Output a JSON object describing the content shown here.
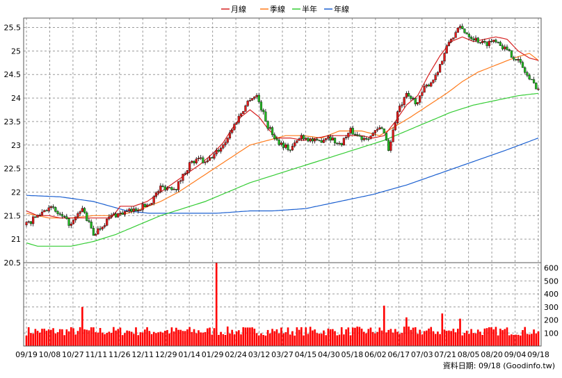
{
  "chart_data": {
    "type": "candlestick",
    "legend": {
      "placement": "top-center",
      "items": [
        {
          "label": "月線",
          "color": "#d62020"
        },
        {
          "label": "季線",
          "color": "#ff7a1a"
        },
        {
          "label": "半年",
          "color": "#33cc33"
        },
        {
          "label": "年線",
          "color": "#1a5fd0"
        }
      ]
    },
    "price_axis": {
      "ticks": [
        "20.5",
        "21",
        "21.5",
        "22",
        "22.5",
        "23",
        "23.5",
        "24",
        "24.5",
        "25",
        "25.5"
      ],
      "ylim": [
        20.5,
        25.7
      ]
    },
    "volume_axis": {
      "ticks": [
        "100",
        "200",
        "300",
        "400",
        "500",
        "600"
      ],
      "ylim": [
        0,
        640
      ]
    },
    "x_ticks": [
      "09/19",
      "10/08",
      "10/27",
      "11/11",
      "11/26",
      "12/11",
      "12/29",
      "01/14",
      "01/29",
      "02/24",
      "03/12",
      "03/27",
      "04/15",
      "04/30",
      "05/18",
      "06/02",
      "06/17",
      "07/03",
      "07/21",
      "08/05",
      "08/20",
      "09/04",
      "09/18"
    ],
    "grid": true,
    "source_note": "資料日期: 09/18 (Goodinfo.tw)",
    "colors": {
      "up": "#e31b1b",
      "down": "#22bb22",
      "volume": "#ff0000",
      "axis": "#555555"
    },
    "price_path": [
      [
        0,
        21.3
      ],
      [
        10,
        21.7
      ],
      [
        20,
        21.3
      ],
      [
        25,
        21.65
      ],
      [
        30,
        21.1
      ],
      [
        38,
        21.5
      ],
      [
        47,
        21.6
      ],
      [
        55,
        21.75
      ],
      [
        60,
        22.1
      ],
      [
        67,
        22.1
      ],
      [
        73,
        22.6
      ],
      [
        78,
        22.7
      ],
      [
        80,
        22.6
      ],
      [
        84,
        22.8
      ],
      [
        88,
        23.0
      ],
      [
        95,
        23.6
      ],
      [
        100,
        24.0
      ],
      [
        103,
        24.05
      ],
      [
        108,
        23.4
      ],
      [
        112,
        23.1
      ],
      [
        118,
        22.9
      ],
      [
        123,
        23.2
      ],
      [
        130,
        23.05
      ],
      [
        135,
        23.2
      ],
      [
        140,
        23.0
      ],
      [
        145,
        23.3
      ],
      [
        150,
        23.15
      ],
      [
        154,
        23.2
      ],
      [
        158,
        23.35
      ],
      [
        160,
        23.3
      ],
      [
        162,
        22.9
      ],
      [
        166,
        23.7
      ],
      [
        170,
        24.05
      ],
      [
        175,
        23.9
      ],
      [
        178,
        24.2
      ],
      [
        182,
        24.4
      ],
      [
        186,
        24.8
      ],
      [
        189,
        25.2
      ],
      [
        194,
        25.5
      ],
      [
        199,
        25.3
      ],
      [
        205,
        25.15
      ],
      [
        210,
        25.25
      ],
      [
        215,
        25.0
      ],
      [
        220,
        24.8
      ],
      [
        225,
        24.4
      ],
      [
        229,
        24.2
      ]
    ],
    "volume_spikes": [
      [
        25,
        300
      ],
      [
        85,
        640
      ],
      [
        160,
        310
      ],
      [
        170,
        220
      ],
      [
        186,
        250
      ],
      [
        194,
        210
      ]
    ],
    "ma_month": [
      [
        0,
        21.6
      ],
      [
        5,
        21.5
      ],
      [
        10,
        21.5
      ],
      [
        15,
        21.45
      ],
      [
        20,
        21.45
      ],
      [
        26,
        21.45
      ],
      [
        32,
        21.45
      ],
      [
        38,
        21.45
      ],
      [
        42,
        21.7
      ],
      [
        48,
        21.7
      ],
      [
        54,
        21.8
      ],
      [
        60,
        22.0
      ],
      [
        66,
        22.2
      ],
      [
        72,
        22.4
      ],
      [
        78,
        22.6
      ],
      [
        84,
        22.85
      ],
      [
        88,
        23.05
      ],
      [
        92,
        23.35
      ],
      [
        96,
        23.6
      ],
      [
        100,
        23.75
      ],
      [
        104,
        23.6
      ],
      [
        108,
        23.35
      ],
      [
        112,
        23.15
      ],
      [
        118,
        23.15
      ],
      [
        124,
        23.1
      ],
      [
        130,
        23.15
      ],
      [
        135,
        23.2
      ],
      [
        140,
        23.2
      ],
      [
        145,
        23.2
      ],
      [
        150,
        23.2
      ],
      [
        155,
        23.15
      ],
      [
        160,
        23.2
      ],
      [
        165,
        23.5
      ],
      [
        170,
        23.85
      ],
      [
        175,
        24.05
      ],
      [
        180,
        24.5
      ],
      [
        185,
        24.9
      ],
      [
        190,
        25.2
      ],
      [
        195,
        25.3
      ],
      [
        200,
        25.2
      ],
      [
        205,
        25.25
      ],
      [
        210,
        25.3
      ],
      [
        215,
        25.25
      ],
      [
        220,
        25.0
      ],
      [
        225,
        24.85
      ],
      [
        229,
        24.8
      ]
    ],
    "ma_quarter": [
      [
        0,
        21.55
      ],
      [
        10,
        21.45
      ],
      [
        20,
        21.45
      ],
      [
        30,
        21.5
      ],
      [
        38,
        21.5
      ],
      [
        45,
        21.55
      ],
      [
        52,
        21.65
      ],
      [
        60,
        21.8
      ],
      [
        68,
        22.0
      ],
      [
        76,
        22.25
      ],
      [
        84,
        22.5
      ],
      [
        92,
        22.75
      ],
      [
        100,
        23.0
      ],
      [
        108,
        23.1
      ],
      [
        116,
        23.2
      ],
      [
        124,
        23.2
      ],
      [
        132,
        23.15
      ],
      [
        140,
        23.3
      ],
      [
        150,
        23.3
      ],
      [
        158,
        23.2
      ],
      [
        165,
        23.4
      ],
      [
        172,
        23.6
      ],
      [
        180,
        23.85
      ],
      [
        188,
        24.1
      ],
      [
        195,
        24.35
      ],
      [
        202,
        24.55
      ],
      [
        210,
        24.7
      ],
      [
        218,
        24.85
      ],
      [
        225,
        24.95
      ],
      [
        229,
        24.8
      ]
    ],
    "ma_half": [
      [
        0,
        20.92
      ],
      [
        5,
        20.85
      ],
      [
        10,
        20.85
      ],
      [
        20,
        20.85
      ],
      [
        30,
        20.95
      ],
      [
        40,
        21.1
      ],
      [
        50,
        21.3
      ],
      [
        60,
        21.5
      ],
      [
        70,
        21.65
      ],
      [
        80,
        21.8
      ],
      [
        90,
        22.0
      ],
      [
        100,
        22.2
      ],
      [
        110,
        22.35
      ],
      [
        120,
        22.5
      ],
      [
        130,
        22.65
      ],
      [
        140,
        22.8
      ],
      [
        150,
        22.95
      ],
      [
        160,
        23.1
      ],
      [
        170,
        23.3
      ],
      [
        180,
        23.5
      ],
      [
        190,
        23.7
      ],
      [
        200,
        23.85
      ],
      [
        210,
        23.95
      ],
      [
        220,
        24.05
      ],
      [
        229,
        24.1
      ]
    ],
    "ma_year": [
      [
        0,
        21.93
      ],
      [
        15,
        21.9
      ],
      [
        30,
        21.8
      ],
      [
        45,
        21.6
      ],
      [
        55,
        21.55
      ],
      [
        70,
        21.55
      ],
      [
        85,
        21.55
      ],
      [
        100,
        21.6
      ],
      [
        110,
        21.6
      ],
      [
        125,
        21.65
      ],
      [
        140,
        21.8
      ],
      [
        155,
        21.95
      ],
      [
        170,
        22.15
      ],
      [
        185,
        22.4
      ],
      [
        200,
        22.65
      ],
      [
        215,
        22.9
      ],
      [
        229,
        23.15
      ]
    ]
  }
}
